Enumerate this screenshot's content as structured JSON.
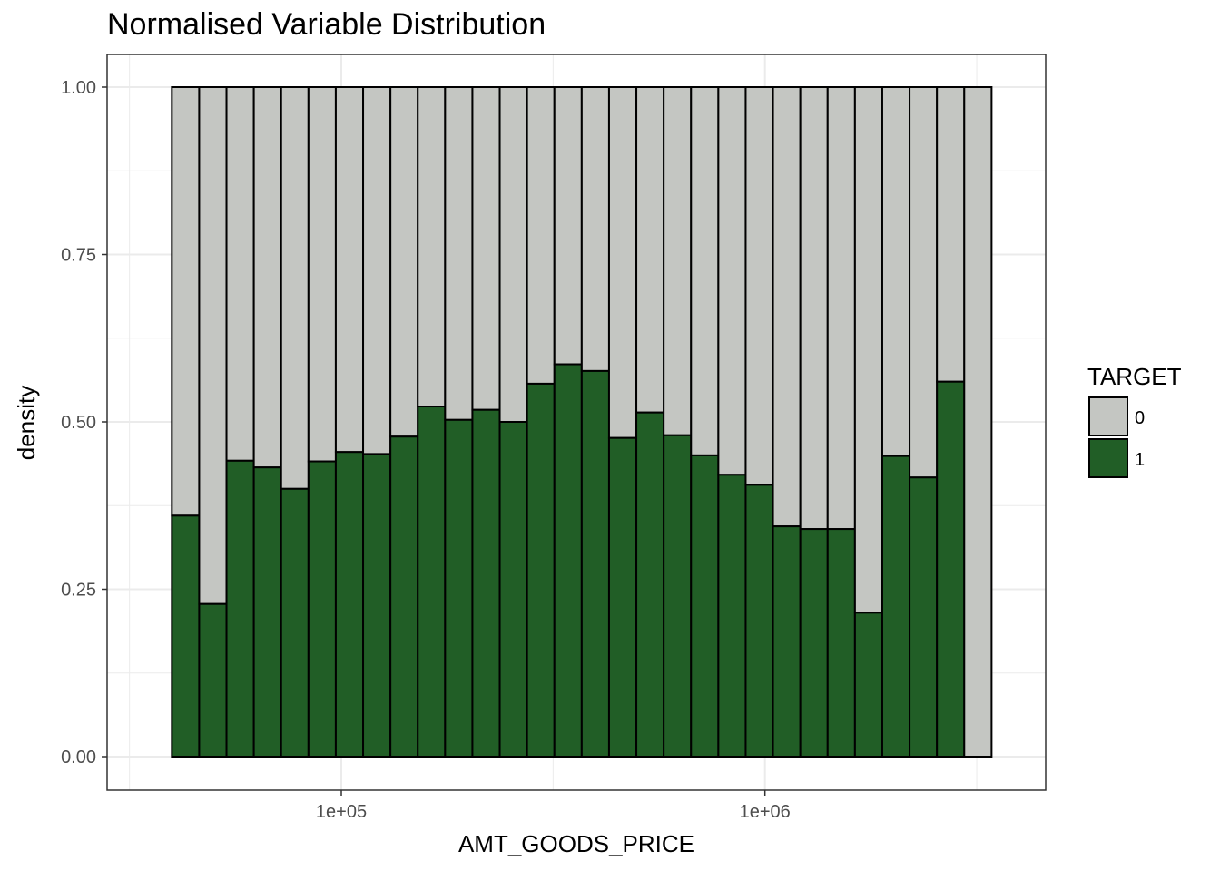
{
  "chart_data": {
    "type": "bar",
    "stacked": "fill",
    "title": "Normalised Variable Distribution",
    "xlabel": "AMT_GOODS_PRICE",
    "ylabel": "density",
    "x_scale": "log10",
    "x_range": [
      28000,
      4600000
    ],
    "ylim": [
      0,
      1
    ],
    "y_ticks": [
      0,
      0.25,
      0.5,
      0.75,
      1
    ],
    "y_tick_labels": [
      "0.00",
      "0.25",
      "0.50",
      "0.75",
      "1.00"
    ],
    "x_ticks": [
      100000,
      1000000
    ],
    "x_tick_labels": [
      "1e+05",
      "1e+06"
    ],
    "grid": true,
    "legend": {
      "title": "TARGET",
      "position": "right",
      "entries": [
        {
          "label": "0",
          "color": "#c4c6c2"
        },
        {
          "label": "1",
          "color": "#215e26"
        }
      ]
    },
    "bins": {
      "log10_start": 4.6,
      "log10_width": 0.0645,
      "target_1_share": [
        0.36,
        0.228,
        0.442,
        0.432,
        0.4,
        0.441,
        0.455,
        0.452,
        0.478,
        0.523,
        0.503,
        0.518,
        0.5,
        0.557,
        0.586,
        0.576,
        0.476,
        0.514,
        0.48,
        0.45,
        0.421,
        0.406,
        0.344,
        0.34,
        0.34,
        0.215,
        0.449,
        0.417,
        0.56,
        0.0
      ]
    }
  }
}
